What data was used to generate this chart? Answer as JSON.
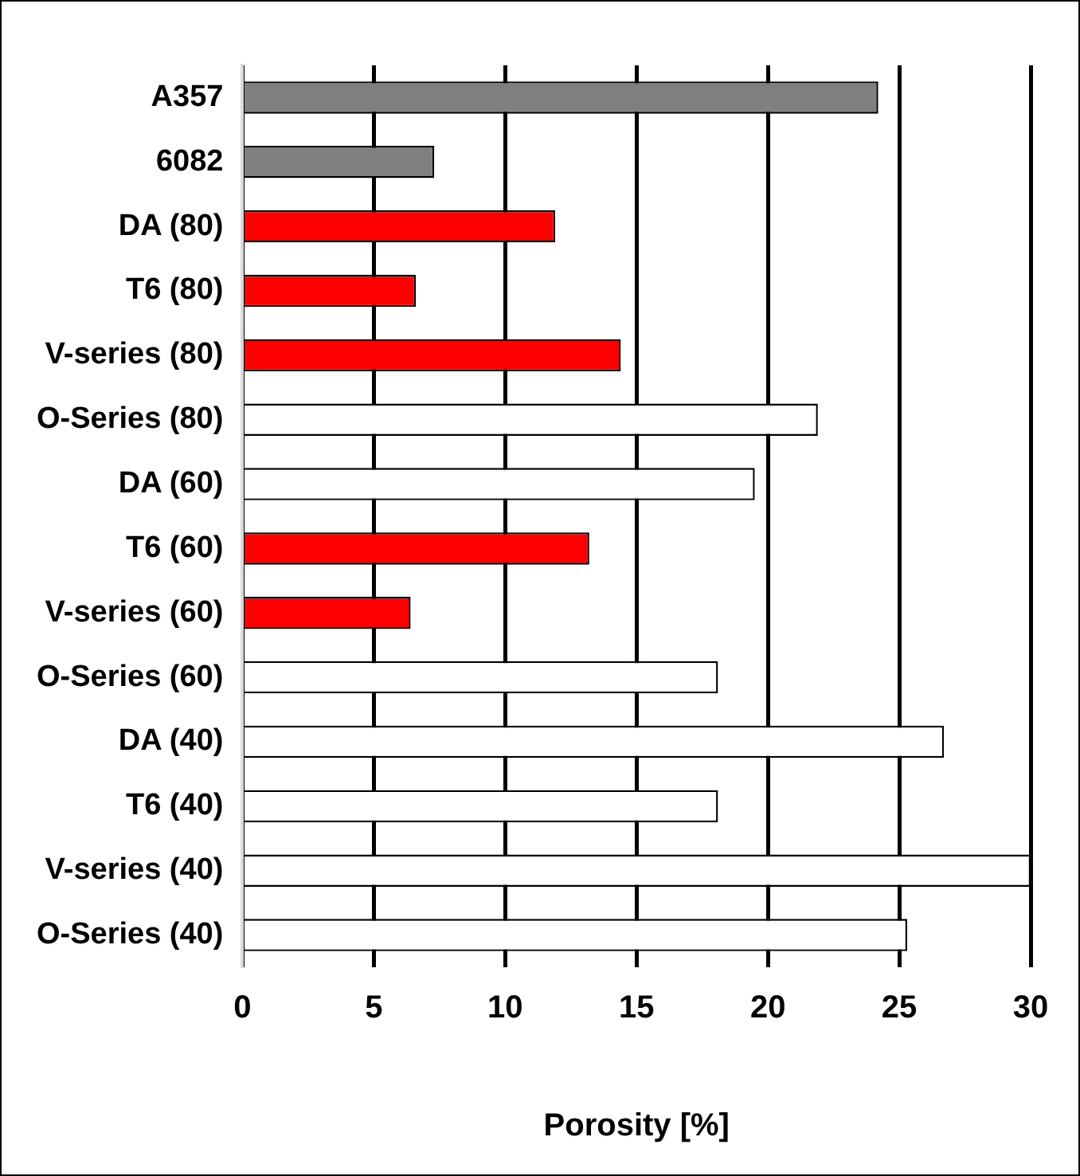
{
  "chart_data": {
    "type": "bar",
    "orientation": "horizontal",
    "xlabel": "Porosity [%]",
    "categories": [
      "A357",
      "6082",
      "DA (80)",
      "T6 (80)",
      "V-series (80)",
      "O-Series (80)",
      "DA (60)",
      "T6 (60)",
      "V-series (60)",
      "O-Series (60)",
      "DA (40)",
      "T6 (40)",
      "V-series (40)",
      "O-Series (40)"
    ],
    "values": [
      24.2,
      7.3,
      11.9,
      6.6,
      14.4,
      21.9,
      19.5,
      13.2,
      6.4,
      18.1,
      26.7,
      18.1,
      30.0,
      25.3
    ],
    "colors": [
      "#7f7f7f",
      "#7f7f7f",
      "#ff0000",
      "#ff0000",
      "#ff0000",
      "#ffffff",
      "#ffffff",
      "#ff0000",
      "#ff0000",
      "#ffffff",
      "#ffffff",
      "#ffffff",
      "#ffffff",
      "#ffffff"
    ],
    "xlim": [
      0,
      30
    ],
    "xticks": [
      0,
      5,
      10,
      15,
      20,
      25,
      30
    ],
    "grid": "x",
    "legend": false
  }
}
